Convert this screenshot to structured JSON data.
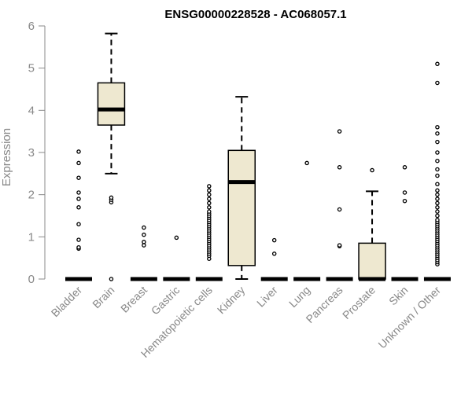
{
  "chart_data": {
    "type": "box",
    "title": "ENSG00000228528 - AC068057.1",
    "ylabel": "Expression",
    "ylim": [
      0,
      6
    ],
    "yticks": [
      "0",
      "1",
      "2",
      "3",
      "4",
      "5",
      "6"
    ],
    "grid": false,
    "legend": "none",
    "box_fill": "#eee8d0",
    "categories": [
      "Bladder",
      "Brain",
      "Breast",
      "Gastric",
      "Hematopoietic cells",
      "Kidney",
      "Liver",
      "Lung",
      "Pancreas",
      "Prostate",
      "Skin",
      "Unknown / Other"
    ],
    "boxes": [
      {
        "q1": 0,
        "median": 0,
        "q3": 0,
        "whisker_low": 0,
        "whisker_high": 0,
        "outliers": [
          0.72,
          0.75,
          0.93,
          1.3,
          1.7,
          1.9,
          2.05,
          2.4,
          2.75,
          3.02
        ]
      },
      {
        "q1": 3.65,
        "median": 4.02,
        "q3": 4.65,
        "whisker_low": 2.5,
        "whisker_high": 5.82,
        "outliers": [
          0,
          1.82,
          1.88,
          1.93
        ]
      },
      {
        "q1": 0,
        "median": 0,
        "q3": 0,
        "whisker_low": 0,
        "whisker_high": 0,
        "outliers": [
          0.8,
          0.88,
          1.05,
          1.22
        ]
      },
      {
        "q1": 0,
        "median": 0,
        "q3": 0,
        "whisker_low": 0,
        "whisker_high": 0,
        "outliers": [
          0.98
        ]
      },
      {
        "q1": 0,
        "median": 0,
        "q3": 0,
        "whisker_low": 0,
        "whisker_high": 0,
        "outliers": [
          0.48,
          0.55,
          0.6,
          0.65,
          0.7,
          0.75,
          0.8,
          0.85,
          0.9,
          0.95,
          1.0,
          1.05,
          1.1,
          1.15,
          1.2,
          1.25,
          1.3,
          1.35,
          1.4,
          1.45,
          1.5,
          1.55,
          1.6,
          1.7,
          1.8,
          1.9,
          2.0,
          2.1,
          2.2
        ]
      },
      {
        "q1": 0.32,
        "median": 2.3,
        "q3": 3.05,
        "whisker_low": 0,
        "whisker_high": 4.32,
        "outliers": []
      },
      {
        "q1": 0,
        "median": 0,
        "q3": 0,
        "whisker_low": 0,
        "whisker_high": 0,
        "outliers": [
          0.6,
          0.92
        ]
      },
      {
        "q1": 0,
        "median": 0,
        "q3": 0,
        "whisker_low": 0,
        "whisker_high": 0,
        "outliers": [
          2.75
        ]
      },
      {
        "q1": 0,
        "median": 0,
        "q3": 0,
        "whisker_low": 0,
        "whisker_high": 0,
        "outliers": [
          0.78,
          0.8,
          1.65,
          2.65,
          3.5
        ]
      },
      {
        "q1": 0,
        "median": 0,
        "q3": 0.85,
        "whisker_low": 0,
        "whisker_high": 2.08,
        "outliers": [
          2.58
        ]
      },
      {
        "q1": 0,
        "median": 0,
        "q3": 0,
        "whisker_low": 0,
        "whisker_high": 0,
        "outliers": [
          1.85,
          2.05,
          2.65
        ]
      },
      {
        "q1": 0,
        "median": 0,
        "q3": 0,
        "whisker_low": 0,
        "whisker_high": 0,
        "outliers": [
          0.35,
          0.4,
          0.45,
          0.5,
          0.55,
          0.6,
          0.65,
          0.7,
          0.75,
          0.8,
          0.85,
          0.9,
          0.95,
          1.0,
          1.05,
          1.1,
          1.15,
          1.2,
          1.25,
          1.3,
          1.35,
          1.4,
          1.5,
          1.6,
          1.7,
          1.8,
          1.9,
          2.0,
          2.1,
          2.25,
          2.45,
          2.6,
          2.8,
          3.0,
          3.25,
          3.45,
          3.6,
          4.65,
          5.1
        ]
      }
    ]
  }
}
